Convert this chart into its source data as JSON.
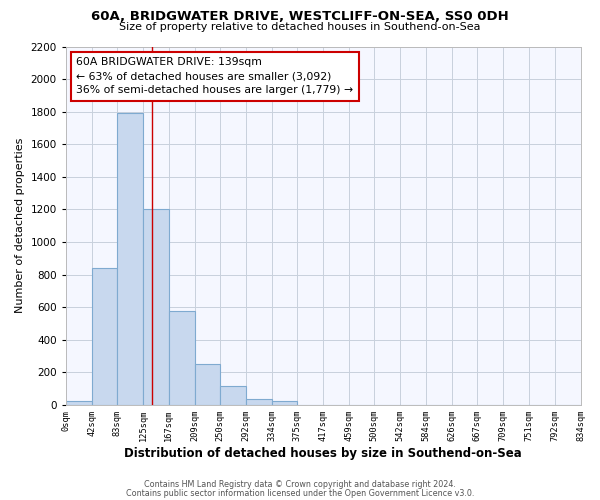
{
  "title": "60A, BRIDGWATER DRIVE, WESTCLIFF-ON-SEA, SS0 0DH",
  "subtitle": "Size of property relative to detached houses in Southend-on-Sea",
  "xlabel": "Distribution of detached houses by size in Southend-on-Sea",
  "ylabel": "Number of detached properties",
  "bar_edges": [
    0,
    42,
    83,
    125,
    167,
    209,
    250,
    292,
    334,
    375,
    417,
    459,
    500,
    542,
    584,
    626,
    667,
    709,
    751,
    792,
    834
  ],
  "bar_heights": [
    25,
    840,
    1790,
    1200,
    580,
    255,
    115,
    40,
    22,
    0,
    0,
    0,
    0,
    0,
    0,
    0,
    0,
    0,
    0,
    0
  ],
  "bar_color": "#c8d8ee",
  "bar_edge_color": "#7faad0",
  "property_line_x": 139,
  "property_line_color": "#cc0000",
  "annotation_text_line1": "60A BRIDGWATER DRIVE: 139sqm",
  "annotation_text_line2": "← 63% of detached houses are smaller (3,092)",
  "annotation_text_line3": "36% of semi-detached houses are larger (1,779) →",
  "ylim": [
    0,
    2200
  ],
  "yticks": [
    0,
    200,
    400,
    600,
    800,
    1000,
    1200,
    1400,
    1600,
    1800,
    2000,
    2200
  ],
  "xtick_labels": [
    "0sqm",
    "42sqm",
    "83sqm",
    "125sqm",
    "167sqm",
    "209sqm",
    "250sqm",
    "292sqm",
    "334sqm",
    "375sqm",
    "417sqm",
    "459sqm",
    "500sqm",
    "542sqm",
    "584sqm",
    "626sqm",
    "667sqm",
    "709sqm",
    "751sqm",
    "792sqm",
    "834sqm"
  ],
  "grid_color": "#c8d0dc",
  "background_color": "#ffffff",
  "plot_bg_color": "#f5f7ff",
  "footer_line1": "Contains HM Land Registry data © Crown copyright and database right 2024.",
  "footer_line2": "Contains public sector information licensed under the Open Government Licence v3.0."
}
